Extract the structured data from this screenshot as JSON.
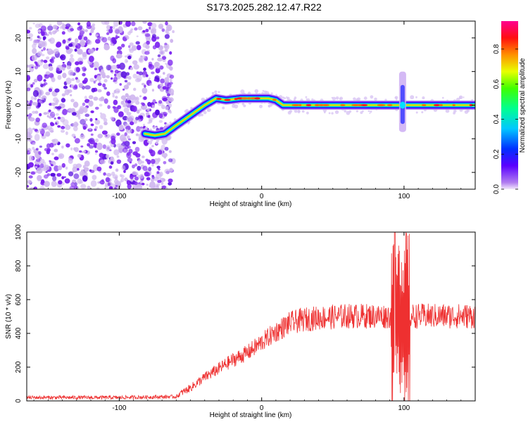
{
  "title": "S173.2025.282.12.47.R22",
  "chart_data": [
    {
      "type": "heatmap",
      "title": "S173.2025.282.12.47.R22",
      "xlabel": "Height of straight line (km)",
      "ylabel": "Frequency (Hz)",
      "xlim": [
        -165,
        150
      ],
      "ylim": [
        -25,
        25
      ],
      "xticks": [
        -100,
        0,
        100
      ],
      "yticks": [
        -20,
        -10,
        0,
        10,
        20
      ],
      "colorbar": {
        "label": "Normalized spectral amplitude",
        "range": [
          0,
          0.96
        ],
        "ticks": [
          0.0,
          0.2,
          0.4,
          0.6,
          0.8
        ],
        "colors": [
          "#e8d6f5",
          "#7a00ff",
          "#0000ff",
          "#00c8ff",
          "#00ff80",
          "#60ff00",
          "#ffff00",
          "#ff8000",
          "#ff0000",
          "#ff0080"
        ]
      },
      "noise_region_km": [
        -165,
        -62
      ],
      "ridge": {
        "x": [
          -82,
          -75,
          -68,
          -60,
          -50,
          -40,
          -32,
          -25,
          -15,
          -5,
          5,
          10,
          15,
          25,
          40,
          60,
          80,
          90,
          95,
          100,
          110,
          130,
          150
        ],
        "y": [
          -8.5,
          -9,
          -8.5,
          -6,
          -3,
          0,
          2,
          1.5,
          2,
          2,
          2,
          1.5,
          0,
          0,
          0,
          0,
          0,
          0,
          0,
          0,
          0,
          0,
          0
        ]
      },
      "burst": {
        "x": 99,
        "ymin": -8,
        "ymax": 10
      }
    },
    {
      "type": "line",
      "xlabel": "Height of straight line (km)",
      "ylabel": "SNR (10 * v/v)",
      "xlim": [
        -165,
        150
      ],
      "ylim": [
        0,
        1000
      ],
      "xticks": [
        -100,
        0,
        100
      ],
      "yticks": [
        0,
        200,
        400,
        600,
        800,
        1000
      ],
      "color": "#ee3030",
      "trend": {
        "x": [
          -165,
          -100,
          -60,
          -50,
          -40,
          -30,
          -20,
          -10,
          0,
          10,
          20,
          30,
          40,
          60,
          80,
          90,
          110,
          130,
          150
        ],
        "y": [
          20,
          20,
          25,
          70,
          130,
          180,
          230,
          270,
          330,
          390,
          440,
          460,
          470,
          480,
          480,
          480,
          480,
          480,
          480
        ]
      },
      "spike_region_km": [
        91,
        104
      ],
      "peak": 1000
    }
  ]
}
